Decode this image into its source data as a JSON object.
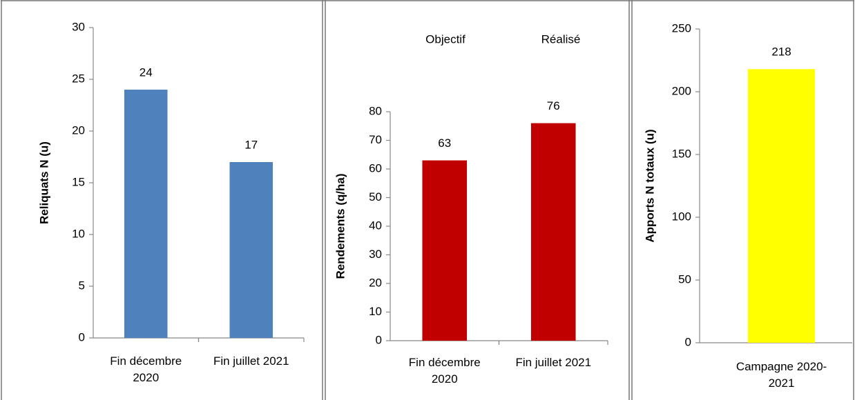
{
  "chart_data": [
    {
      "type": "bar",
      "ylabel": "Reliquats N (u)",
      "categories": [
        "Fin décembre 2020",
        "Fin juillet 2021"
      ],
      "values": [
        24,
        17
      ],
      "color": "#4f81bd",
      "ylim": [
        0,
        30
      ],
      "yticks": [
        0,
        5,
        10,
        15,
        20,
        25,
        30
      ]
    },
    {
      "type": "bar",
      "ylabel": "Rendements (q/ha)",
      "annotations": [
        "Objectif",
        "Réalisé"
      ],
      "categories": [
        "Fin décembre 2020",
        "Fin juillet 2021"
      ],
      "values": [
        63,
        76
      ],
      "color": "#c00000",
      "ylim": [
        0,
        80
      ],
      "yticks": [
        0,
        10,
        20,
        30,
        40,
        50,
        60,
        70,
        80
      ]
    },
    {
      "type": "bar",
      "ylabel": "Apports N totaux (u)",
      "categories": [
        "Campagne 2020-2021"
      ],
      "values": [
        218
      ],
      "color": "#ffff00",
      "ylim": [
        0,
        250
      ],
      "yticks": [
        0,
        50,
        100,
        150,
        200,
        250
      ]
    }
  ]
}
